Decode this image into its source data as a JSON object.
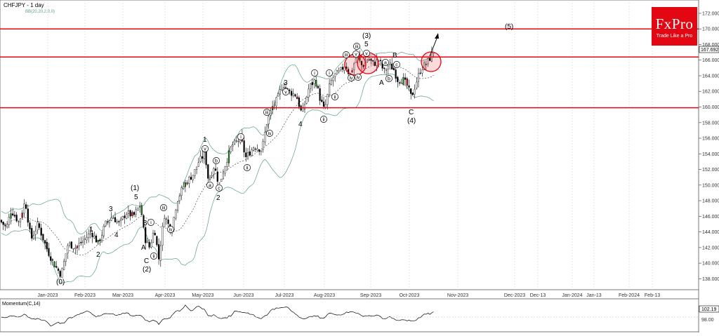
{
  "chart_data": [
    {
      "type": "candlestick",
      "symbol_title": "CHFJPY - 1 day",
      "indicator_label": "BB(20,20,2,0,0)",
      "y_ticks": [
        "172.000",
        "170.000",
        "168.000",
        "166.000",
        "164.000",
        "162.000",
        "160.000",
        "158.000",
        "156.000",
        "154.000",
        "152.000",
        "150.000",
        "148.000",
        "146.000",
        "144.000",
        "142.000",
        "140.000",
        "138.000"
      ],
      "ylim": [
        136.6,
        173.7
      ],
      "current_price": "167.692",
      "x_ticks": [
        "Jan-2023",
        "Feb-2023",
        "Mar-2023",
        "Apr-2023",
        "May-2023",
        "Jun-2023",
        "Jul-2023",
        "Aug-2023",
        "Sep-2023",
        "Oct-2023",
        "Nov-2023",
        "Dec-2023",
        "Dec-13",
        "Jan-2024",
        "Jan-13",
        "Feb-2024",
        "Feb-13"
      ],
      "horizontal_levels": [
        170.0,
        166.4,
        159.9
      ],
      "price_path": [
        [
          0,
          145.5
        ],
        [
          9,
          144.5
        ],
        [
          16,
          146.8
        ],
        [
          27,
          145.2
        ],
        [
          36,
          148.0
        ],
        [
          44,
          143.0
        ],
        [
          54,
          145.0
        ],
        [
          66,
          142.0
        ],
        [
          76,
          140.0
        ],
        [
          87,
          138.5
        ],
        [
          97,
          142.5
        ],
        [
          108,
          142.0
        ],
        [
          120,
          143.0
        ],
        [
          130,
          144.0
        ],
        [
          140,
          142.5
        ],
        [
          150,
          145.0
        ],
        [
          160,
          146.0
        ],
        [
          170,
          145.0
        ],
        [
          180,
          146.5
        ],
        [
          190,
          146.0
        ],
        [
          200,
          147.5
        ],
        [
          206,
          143.2
        ],
        [
          213,
          142.0
        ],
        [
          220,
          144.5
        ],
        [
          226,
          140.5
        ],
        [
          234,
          146.2
        ],
        [
          244,
          144.0
        ],
        [
          252,
          148.0
        ],
        [
          262,
          150.0
        ],
        [
          276,
          151.5
        ],
        [
          283,
          153.0
        ],
        [
          292,
          154.0
        ],
        [
          297,
          150.5
        ],
        [
          305,
          152.5
        ],
        [
          312,
          150.0
        ],
        [
          322,
          153.0
        ],
        [
          330,
          155.0
        ],
        [
          343,
          156.0
        ],
        [
          350,
          153.5
        ],
        [
          362,
          155.0
        ],
        [
          373,
          154.5
        ],
        [
          380,
          158.0
        ],
        [
          388,
          160.0
        ],
        [
          395,
          161.0
        ],
        [
          403,
          163.0
        ],
        [
          411,
          162.0
        ],
        [
          422,
          161.5
        ],
        [
          430,
          159.0
        ],
        [
          440,
          162.5
        ],
        [
          449,
          163.5
        ],
        [
          456,
          161.0
        ],
        [
          462,
          159.5
        ],
        [
          470,
          163.0
        ],
        [
          476,
          164.0
        ],
        [
          484,
          164.5
        ],
        [
          492,
          165.5
        ],
        [
          498,
          164.0
        ],
        [
          508,
          166.5
        ],
        [
          516,
          165.2
        ],
        [
          524,
          166.2
        ],
        [
          532,
          165.5
        ],
        [
          540,
          166.0
        ],
        [
          547,
          164.5
        ],
        [
          553,
          165.3
        ],
        [
          560,
          165.0
        ],
        [
          566,
          163.5
        ],
        [
          574,
          163.5
        ],
        [
          580,
          162.7
        ],
        [
          586,
          161.2
        ],
        [
          592,
          163.0
        ],
        [
          600,
          165.0
        ],
        [
          607,
          165.5
        ],
        [
          614,
          166.5
        ],
        [
          620,
          167.7
        ]
      ],
      "annotations": {
        "waves": [
          "(0)",
          "(1)",
          "(2)",
          "(3)",
          "(4)",
          "(5)",
          "1",
          "2",
          "3",
          "4",
          "5",
          "A",
          "B",
          "C"
        ],
        "circled_subwaves": [
          "i",
          "ii",
          "iii",
          "iv",
          "v",
          "a",
          "b",
          "c"
        ]
      }
    },
    {
      "type": "line",
      "title": "Momentum(C,14)",
      "y_ticks": [
        "98.00"
      ],
      "current_value": "102.19"
    }
  ],
  "branding": {
    "logo_text": "FxPro",
    "tagline": "Trade Like a Pro",
    "logo_color": "#e30613"
  },
  "colors": {
    "bull": "#1a8a1a",
    "bear": "#e30613",
    "level": "#e30613",
    "band": "#5c9e8a"
  }
}
